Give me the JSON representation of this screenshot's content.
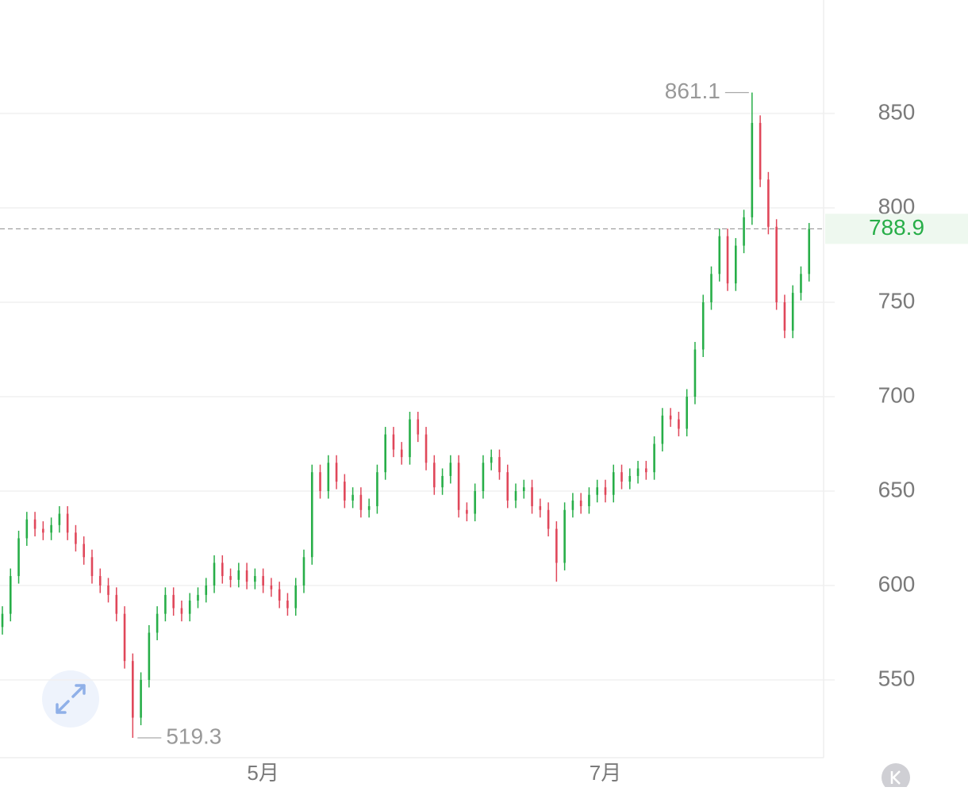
{
  "chart_data": {
    "type": "candlestick",
    "categories": [
      null,
      null,
      null,
      null,
      null,
      null,
      null,
      null,
      null,
      null,
      null,
      null,
      null,
      null,
      null,
      null,
      null,
      null,
      null,
      null,
      null,
      null,
      null,
      null,
      null,
      null,
      null,
      null,
      null,
      null,
      null,
      null,
      "5月",
      null,
      null,
      null,
      null,
      null,
      null,
      null,
      null,
      null,
      null,
      null,
      null,
      null,
      null,
      null,
      null,
      null,
      null,
      null,
      null,
      null,
      null,
      null,
      null,
      null,
      null,
      null,
      null,
      null,
      null,
      null,
      null,
      null,
      null,
      null,
      null,
      null,
      null,
      null,
      null,
      null,
      "7月",
      null,
      null,
      null,
      null,
      null,
      null,
      null,
      null,
      null,
      null,
      null,
      null,
      null,
      null,
      null,
      null,
      null,
      null,
      null,
      null,
      null,
      null,
      null,
      null,
      null
    ],
    "open": [
      578,
      585,
      605,
      625,
      635,
      630,
      628,
      632,
      638,
      628,
      622,
      615,
      605,
      600,
      595,
      585,
      560,
      530,
      550,
      575,
      585,
      595,
      588,
      585,
      592,
      595,
      600,
      612,
      605,
      603,
      608,
      602,
      605,
      600,
      598,
      592,
      588,
      600,
      615,
      660,
      650,
      665,
      655,
      645,
      648,
      640,
      642,
      660,
      680,
      672,
      668,
      688,
      680,
      665,
      652,
      658,
      665,
      640,
      638,
      650,
      665,
      668,
      660,
      645,
      650,
      652,
      642,
      640,
      630,
      612,
      640,
      645,
      642,
      648,
      652,
      648,
      660,
      655,
      658,
      662,
      660,
      675,
      690,
      688,
      683,
      700,
      725,
      750,
      765,
      785,
      760,
      780,
      795,
      845,
      815,
      790,
      750,
      735,
      755,
      765
    ],
    "high": [
      589,
      609,
      629,
      639,
      639,
      634,
      636,
      642,
      642,
      632,
      626,
      619,
      609,
      604,
      599,
      589,
      564,
      554,
      579,
      589,
      599,
      599,
      592,
      596,
      599,
      604,
      616,
      616,
      609,
      612,
      612,
      609,
      609,
      604,
      602,
      596,
      604,
      619,
      664,
      664,
      669,
      669,
      659,
      652,
      652,
      646,
      664,
      684,
      684,
      676,
      692,
      692,
      684,
      669,
      662,
      669,
      669,
      644,
      654,
      669,
      672,
      672,
      664,
      654,
      656,
      656,
      646,
      644,
      634,
      644,
      649,
      649,
      652,
      656,
      656,
      664,
      664,
      662,
      666,
      666,
      679,
      694,
      694,
      692,
      704,
      729,
      754,
      769,
      789,
      789,
      784,
      799,
      861.1,
      849,
      819,
      794,
      754,
      759,
      769,
      792
    ],
    "low": [
      574,
      581,
      601,
      621,
      626,
      624,
      624,
      628,
      624,
      618,
      611,
      601,
      596,
      591,
      581,
      556,
      519.3,
      526,
      546,
      571,
      581,
      584,
      581,
      581,
      588,
      591,
      596,
      601,
      599,
      599,
      598,
      598,
      596,
      594,
      588,
      584,
      584,
      596,
      611,
      646,
      646,
      651,
      641,
      641,
      636,
      636,
      638,
      656,
      668,
      664,
      664,
      676,
      661,
      648,
      648,
      654,
      636,
      634,
      634,
      646,
      661,
      656,
      641,
      641,
      646,
      638,
      636,
      626,
      602,
      608,
      636,
      638,
      638,
      644,
      644,
      644,
      651,
      651,
      654,
      656,
      656,
      671,
      684,
      679,
      679,
      696,
      721,
      746,
      761,
      756,
      756,
      776,
      791,
      811,
      786,
      746,
      731,
      731,
      751,
      761
    ],
    "close": [
      585,
      605,
      625,
      635,
      630,
      628,
      632,
      638,
      628,
      622,
      615,
      605,
      600,
      595,
      585,
      560,
      530,
      550,
      575,
      585,
      595,
      588,
      585,
      592,
      595,
      600,
      612,
      605,
      603,
      608,
      602,
      605,
      600,
      598,
      592,
      588,
      600,
      615,
      660,
      650,
      665,
      655,
      645,
      648,
      640,
      642,
      660,
      680,
      672,
      668,
      688,
      680,
      665,
      652,
      658,
      665,
      640,
      638,
      650,
      665,
      668,
      660,
      645,
      650,
      652,
      642,
      640,
      630,
      612,
      640,
      645,
      642,
      648,
      652,
      648,
      660,
      655,
      658,
      662,
      660,
      675,
      690,
      688,
      683,
      700,
      725,
      750,
      765,
      785,
      760,
      780,
      795,
      845,
      815,
      790,
      750,
      735,
      755,
      765,
      788.9
    ],
    "up_color": "#27ae48",
    "down_color": "#e0475a",
    "ylim": [
      508.8,
      910.1
    ],
    "yticks": [
      550,
      600,
      650,
      700,
      750,
      800,
      850
    ],
    "grid": true
  }
}
